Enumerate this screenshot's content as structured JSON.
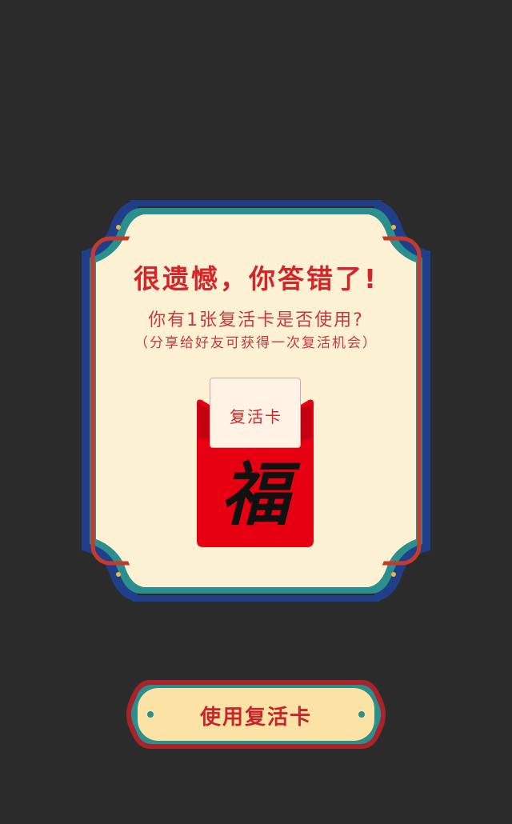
{
  "dialog": {
    "title": "很遗憾，你答错了!",
    "question": "你有1张复活卡是否使用?",
    "hint": "（分享给好友可获得一次复活机会）",
    "card_label": "复活卡",
    "fu_char": "福"
  },
  "action": {
    "use_card_label": "使用复活卡"
  },
  "colors": {
    "background": "#2b2b2b",
    "panel": "#fdf1d3",
    "red": "#d3262b",
    "teal": "#2b8f8d",
    "navy": "#1f3f8a",
    "envelope_red": "#e60012"
  }
}
